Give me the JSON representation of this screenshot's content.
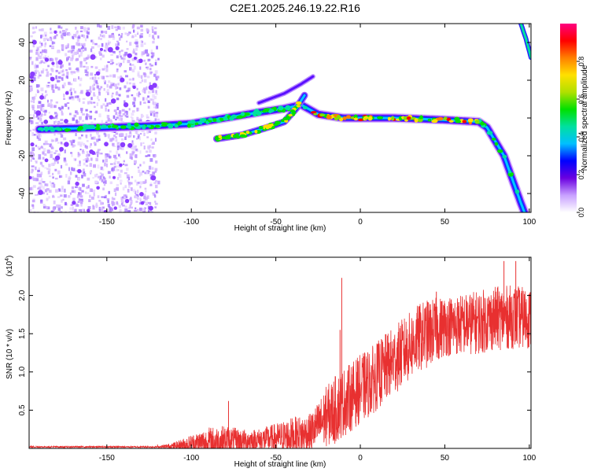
{
  "title": "C2E1.2025.246.19.22.R16",
  "chart_data": [
    {
      "type": "heatmap",
      "name": "spectrogram",
      "xlabel": "Height of straight line (km)",
      "ylabel": "Frequency (Hz)",
      "xlim": [
        -196,
        101
      ],
      "ylim": [
        -50,
        50
      ],
      "xticks": [
        -150,
        -100,
        -50,
        0,
        50,
        100
      ],
      "xtick_labels": [
        "-150",
        "-100",
        "-50",
        "0",
        "50",
        "100"
      ],
      "yticks": [
        -40,
        -20,
        0,
        20,
        40
      ],
      "ytick_labels": [
        "-40",
        "-20",
        "0",
        "20",
        "40"
      ],
      "colorbar": {
        "label": "Normalized spectral amplitude",
        "range": [
          0,
          1
        ],
        "ticks": [
          0.0,
          0.2,
          0.4,
          0.6,
          0.8
        ],
        "tick_labels": [
          "0.0",
          "0.2",
          "0.4",
          "0.6",
          "0.8"
        ],
        "colors": [
          "#ffffff",
          "#c8a0ff",
          "#6a00e0",
          "#0000ff",
          "#00c0ff",
          "#00e0a0",
          "#00e000",
          "#b0e000",
          "#ffe000",
          "#ff8000",
          "#ff0000",
          "#ff0080"
        ]
      },
      "traces": [
        {
          "name": "main echo",
          "points": [
            [
              -190,
              -6
            ],
            [
              -150,
              -5
            ],
            [
              -120,
              -4
            ],
            [
              -100,
              -3
            ],
            [
              -80,
              0
            ],
            [
              -60,
              3
            ],
            [
              -45,
              5
            ],
            [
              -35,
              7
            ],
            [
              -25,
              2
            ],
            [
              -10,
              0
            ],
            [
              0,
              0
            ],
            [
              20,
              0
            ],
            [
              50,
              -1
            ],
            [
              70,
              -2
            ],
            [
              75,
              -5
            ],
            [
              85,
              -20
            ],
            [
              95,
              -45
            ],
            [
              98,
              -52
            ]
          ]
        },
        {
          "name": "secondary echo",
          "points": [
            [
              -85,
              -11
            ],
            [
              -70,
              -9
            ],
            [
              -55,
              -5
            ],
            [
              -45,
              -2
            ],
            [
              -38,
              5
            ],
            [
              -33,
              12
            ]
          ]
        },
        {
          "name": "upper streak",
          "points": [
            [
              -60,
              8
            ],
            [
              -45,
              13
            ],
            [
              -35,
              18
            ],
            [
              -28,
              22
            ]
          ]
        },
        {
          "name": "aliased branch",
          "points": [
            [
              95,
              50
            ],
            [
              98,
              42
            ],
            [
              101,
              32
            ]
          ]
        }
      ]
    },
    {
      "type": "line",
      "name": "snr",
      "xlabel": "Height of straight line (km)",
      "ylabel": "SNR (10 * v/v)",
      "y_multiplier_label": "(x10",
      "y_multiplier_exp": "4",
      "y_multiplier_close": ")",
      "xlim": [
        -196,
        101
      ],
      "ylim": [
        0,
        2.5
      ],
      "xticks": [
        -150,
        -100,
        -50,
        0,
        50,
        100
      ],
      "xtick_labels": [
        "-150",
        "-100",
        "-50",
        "0",
        "50",
        "100"
      ],
      "yticks": [
        0.5,
        1.0,
        1.5,
        2.0
      ],
      "ytick_labels": [
        "0.5",
        "1.0",
        "1.5",
        "2.0"
      ],
      "color": "#e83030",
      "envelope": {
        "x": [
          -196,
          -120,
          -110,
          -100,
          -90,
          -80,
          -70,
          -60,
          -50,
          -40,
          -30,
          -25,
          -20,
          -15,
          -10,
          -5,
          0,
          5,
          10,
          15,
          20,
          25,
          30,
          35,
          40,
          50,
          60,
          70,
          80,
          90,
          100
        ],
        "baseline": [
          0.02,
          0.02,
          0.03,
          0.06,
          0.08,
          0.1,
          0.1,
          0.11,
          0.13,
          0.16,
          0.2,
          0.3,
          0.42,
          0.5,
          0.6,
          0.68,
          0.78,
          0.85,
          0.95,
          1.05,
          1.15,
          1.25,
          1.35,
          1.45,
          1.5,
          1.6,
          1.62,
          1.65,
          1.7,
          1.72,
          1.7
        ],
        "amplitude": [
          0.01,
          0.01,
          0.05,
          0.12,
          0.2,
          0.2,
          0.15,
          0.15,
          0.2,
          0.25,
          0.25,
          0.3,
          0.4,
          0.45,
          0.45,
          0.45,
          0.45,
          0.45,
          0.45,
          0.45,
          0.45,
          0.45,
          0.45,
          0.45,
          0.45,
          0.4,
          0.4,
          0.42,
          0.42,
          0.42,
          0.4
        ]
      },
      "peaks": [
        [
          -11,
          2.23
        ],
        [
          -120,
          0.05
        ],
        [
          -78,
          0.62
        ],
        [
          -12,
          1.55
        ],
        [
          45,
          2.05
        ],
        [
          85,
          2.45
        ],
        [
          92,
          2.45
        ]
      ]
    }
  ]
}
